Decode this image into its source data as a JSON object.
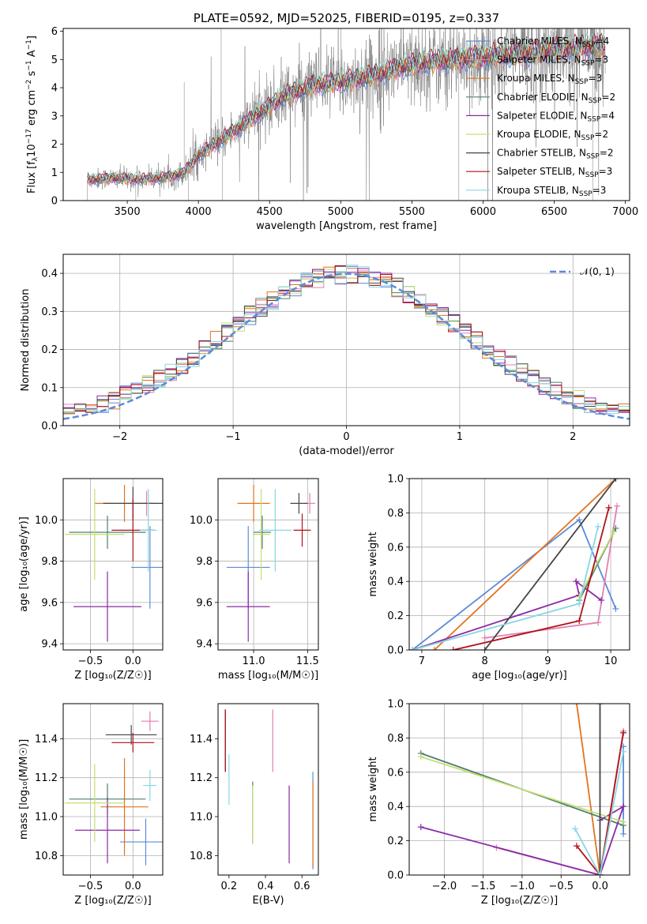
{
  "colors": {
    "Chabrier MILES": "#5b8bd9",
    "Salpeter MILES": "#e27fb1",
    "Kroupa MILES": "#e2731e",
    "Chabrier ELODIE": "#4f7f6f",
    "Salpeter ELODIE": "#8a2aa8",
    "Kroupa ELODIE": "#c2e070",
    "Chabrier STELIB": "#454545",
    "Salpeter STELIB": "#b0101a",
    "Kroupa STELIB": "#89d6e0",
    "data": "#7a7a7a",
    "gauss": "#5b8bd9"
  },
  "chart_data": [
    {
      "id": "spectrum",
      "type": "line",
      "title": "PLATE=0592, MJD=52025, FIBERID=0195, z=0.337",
      "xlabel": "wavelength [Angstrom, rest frame]",
      "ylabel_parts": [
        "Flux [f",
        "λ",
        "10",
        "−17",
        " erg cm",
        "−2",
        " s",
        "−1",
        " A",
        "−1",
        "]"
      ],
      "xlim": [
        3050,
        7030
      ],
      "ylim": [
        0,
        6.1
      ],
      "xticks": [
        3500,
        4000,
        4500,
        5000,
        5500,
        6000,
        6500,
        7000
      ],
      "yticks": [
        0,
        1,
        2,
        3,
        4,
        5,
        6
      ],
      "grid": false,
      "legend": "upper right",
      "legend_entries": [
        {
          "model": "Chabrier MILES",
          "label": "Chabrier MILES, N",
          "sub": "SSP",
          "tail": "=4"
        },
        {
          "model": "Salpeter MILES",
          "label": "Salpeter MILES, N",
          "sub": "SSP",
          "tail": "=3"
        },
        {
          "model": "Kroupa MILES",
          "label": "Kroupa MILES, N",
          "sub": "SSP",
          "tail": "=3"
        },
        {
          "model": "Chabrier ELODIE",
          "label": "Chabrier ELODIE, N",
          "sub": "SSP",
          "tail": "=2"
        },
        {
          "model": "Salpeter ELODIE",
          "label": "Salpeter ELODIE, N",
          "sub": "SSP",
          "tail": "=4"
        },
        {
          "model": "Kroupa ELODIE",
          "label": "Kroupa ELODIE, N",
          "sub": "SSP",
          "tail": "=2"
        },
        {
          "model": "Chabrier STELIB",
          "label": "Chabrier STELIB, N",
          "sub": "SSP",
          "tail": "=2"
        },
        {
          "model": "Salpeter STELIB",
          "label": "Salpeter STELIB, N",
          "sub": "SSP",
          "tail": "=3"
        },
        {
          "model": "Kroupa STELIB",
          "label": "Kroupa STELIB, N",
          "sub": "SSP",
          "tail": "=3"
        }
      ],
      "x_range": [
        3220,
        6860
      ],
      "continuum": [
        [
          3220,
          0.75
        ],
        [
          3400,
          0.8
        ],
        [
          3600,
          0.75
        ],
        [
          3800,
          0.85
        ],
        [
          3900,
          1.0
        ],
        [
          4000,
          1.6
        ],
        [
          4200,
          2.3
        ],
        [
          4400,
          3.0
        ],
        [
          4600,
          3.7
        ],
        [
          4800,
          4.1
        ],
        [
          5000,
          4.2
        ],
        [
          5200,
          4.4
        ],
        [
          5400,
          4.7
        ],
        [
          5600,
          4.9
        ],
        [
          5800,
          5.0
        ],
        [
          6000,
          5.1
        ],
        [
          6200,
          5.2
        ],
        [
          6400,
          5.3
        ],
        [
          6600,
          5.4
        ],
        [
          6860,
          5.5
        ]
      ]
    },
    {
      "id": "residuals",
      "type": "histogram",
      "xlabel": "(data-model)/error",
      "ylabel": "Normed distribution",
      "xlim": [
        -2.5,
        2.5
      ],
      "ylim": [
        0,
        0.45
      ],
      "xticks": [
        -2,
        -1,
        0,
        1,
        2
      ],
      "yticks": [
        0.0,
        0.1,
        0.2,
        0.3,
        0.4
      ],
      "grid": true,
      "legend": "upper right",
      "legend_label": "𝒩(0, 1)",
      "bin_width": 0.1,
      "bin_start": -2.5
    },
    {
      "id": "age_vs_Z",
      "type": "errorbar",
      "xlabel": "Z [log₁₀(Z/Z☉)]",
      "ylabel": "age  [log₁₀(age/yr)]",
      "xlim": [
        -0.82,
        0.35
      ],
      "ylim": [
        9.37,
        10.2
      ],
      "xticks": [
        -0.5,
        0.0
      ],
      "yticks": [
        9.4,
        9.6,
        9.8,
        10.0
      ],
      "grid": true,
      "points": [
        {
          "model": "Chabrier MILES",
          "x": 0.2,
          "xerr": 0.22,
          "y": 9.77,
          "yerr": 0.2
        },
        {
          "model": "Salpeter MILES",
          "x": 0.16,
          "xerr": 0.15,
          "y": 10.08,
          "yerr": 0.06
        },
        {
          "model": "Kroupa MILES",
          "x": -0.1,
          "xerr": 0.35,
          "y": 10.08,
          "yerr": 0.09
        },
        {
          "model": "Chabrier ELODIE",
          "x": -0.3,
          "xerr": 0.45,
          "y": 9.94,
          "yerr": 0.08
        },
        {
          "model": "Salpeter ELODIE",
          "x": -0.3,
          "xerr": 0.4,
          "y": 9.58,
          "yerr": 0.17
        },
        {
          "model": "Kroupa ELODIE",
          "x": -0.45,
          "xerr": 0.35,
          "y": 9.93,
          "yerr": 0.22
        },
        {
          "model": "Chabrier STELIB",
          "x": 0.0,
          "xerr": 0.35,
          "y": 10.08,
          "yerr": 0.08
        },
        {
          "model": "Salpeter STELIB",
          "x": 0.0,
          "xerr": 0.25,
          "y": 9.95,
          "yerr": 0.15
        },
        {
          "model": "Kroupa STELIB",
          "x": 0.18,
          "xerr": 0.1,
          "y": 9.95,
          "yerr": 0.2
        }
      ]
    },
    {
      "id": "age_vs_mass",
      "type": "errorbar",
      "xlabel": "mass [log₁₀(M/M☉)]",
      "ylabel": "",
      "xlim": [
        10.67,
        11.6
      ],
      "ylim": [
        9.37,
        10.2
      ],
      "xticks": [
        11.0,
        11.5
      ],
      "yticks": [
        9.4,
        9.6,
        9.8,
        10.0
      ],
      "grid": true,
      "points": [
        {
          "model": "Chabrier MILES",
          "x": 10.95,
          "xerr": 0.2,
          "y": 9.77,
          "yerr": 0.2
        },
        {
          "model": "Salpeter MILES",
          "x": 11.52,
          "xerr": 0.05,
          "y": 10.08,
          "yerr": 0.05
        },
        {
          "model": "Kroupa MILES",
          "x": 11.0,
          "xerr": 0.15,
          "y": 10.08,
          "yerr": 0.09
        },
        {
          "model": "Chabrier ELODIE",
          "x": 11.08,
          "xerr": 0.08,
          "y": 9.94,
          "yerr": 0.08
        },
        {
          "model": "Salpeter ELODIE",
          "x": 10.95,
          "xerr": 0.2,
          "y": 9.58,
          "yerr": 0.17
        },
        {
          "model": "Kroupa ELODIE",
          "x": 11.07,
          "xerr": 0.08,
          "y": 9.93,
          "yerr": 0.22
        },
        {
          "model": "Chabrier STELIB",
          "x": 11.42,
          "xerr": 0.08,
          "y": 10.08,
          "yerr": 0.05
        },
        {
          "model": "Salpeter STELIB",
          "x": 11.45,
          "xerr": 0.08,
          "y": 9.95,
          "yerr": 0.08
        },
        {
          "model": "Kroupa STELIB",
          "x": 11.2,
          "xerr": 0.15,
          "y": 9.95,
          "yerr": 0.2
        }
      ]
    },
    {
      "id": "weight_vs_age",
      "type": "line",
      "xlabel": "age  [log₁₀(age/yr)]",
      "ylabel": "mass weight",
      "xlim": [
        6.8,
        10.3
      ],
      "ylim": [
        0,
        1.0
      ],
      "xticks": [
        7,
        8,
        9,
        10
      ],
      "yticks": [
        0.0,
        0.2,
        0.4,
        0.6,
        0.8,
        1.0
      ],
      "grid": true,
      "series": [
        {
          "model": "Chabrier MILES",
          "points": [
            [
              6.85,
              0.0
            ],
            [
              9.5,
              0.76
            ],
            [
              10.08,
              0.24
            ]
          ]
        },
        {
          "model": "Salpeter MILES",
          "points": [
            [
              8.0,
              0.07
            ],
            [
              9.8,
              0.16
            ],
            [
              10.1,
              0.84
            ]
          ]
        },
        {
          "model": "Kroupa MILES",
          "points": [
            [
              7.2,
              0.0
            ],
            [
              10.08,
              1.0
            ]
          ]
        },
        {
          "model": "Chabrier ELODIE",
          "points": [
            [
              9.5,
              0.29
            ],
            [
              10.08,
              0.71
            ]
          ]
        },
        {
          "model": "Salpeter ELODIE",
          "points": [
            [
              6.85,
              0.0
            ],
            [
              9.5,
              0.32
            ],
            [
              9.45,
              0.4
            ],
            [
              9.85,
              0.29
            ]
          ]
        },
        {
          "model": "Kroupa ELODIE",
          "points": [
            [
              9.5,
              0.31
            ],
            [
              10.05,
              0.69
            ]
          ]
        },
        {
          "model": "Chabrier STELIB",
          "points": [
            [
              8.0,
              0.0
            ],
            [
              10.08,
              1.0
            ]
          ]
        },
        {
          "model": "Salpeter STELIB",
          "points": [
            [
              7.5,
              0.0
            ],
            [
              9.5,
              0.17
            ],
            [
              9.97,
              0.83
            ]
          ]
        },
        {
          "model": "Kroupa STELIB",
          "points": [
            [
              6.85,
              0.0
            ],
            [
              9.5,
              0.27
            ],
            [
              9.8,
              0.72
            ]
          ]
        }
      ]
    },
    {
      "id": "mass_vs_Z",
      "type": "errorbar",
      "xlabel": "Z [log₁₀(Z/Z☉)]",
      "ylabel": "mass [log₁₀(M/M☉)]",
      "xlim": [
        -0.82,
        0.35
      ],
      "ylim": [
        10.7,
        11.58
      ],
      "xticks": [
        -0.5,
        0.0
      ],
      "yticks": [
        10.8,
        11.0,
        11.2,
        11.4
      ],
      "grid": true,
      "points": [
        {
          "model": "Chabrier MILES",
          "x": 0.15,
          "xerr": 0.3,
          "y": 10.87,
          "yerr": 0.12
        },
        {
          "model": "Salpeter MILES",
          "x": 0.2,
          "xerr": 0.1,
          "y": 11.49,
          "yerr": 0.05
        },
        {
          "model": "Kroupa MILES",
          "x": -0.1,
          "xerr": 0.28,
          "y": 11.05,
          "yerr": 0.25
        },
        {
          "model": "Chabrier ELODIE",
          "x": -0.3,
          "xerr": 0.45,
          "y": 11.09,
          "yerr": 0.08
        },
        {
          "model": "Salpeter ELODIE",
          "x": -0.3,
          "xerr": 0.38,
          "y": 10.93,
          "yerr": 0.17
        },
        {
          "model": "Kroupa ELODIE",
          "x": -0.45,
          "xerr": 0.35,
          "y": 11.07,
          "yerr": 0.2
        },
        {
          "model": "Chabrier STELIB",
          "x": -0.02,
          "xerr": 0.3,
          "y": 11.42,
          "yerr": 0.05
        },
        {
          "model": "Salpeter STELIB",
          "x": 0.0,
          "xerr": 0.25,
          "y": 11.38,
          "yerr": 0.05
        },
        {
          "model": "Kroupa STELIB",
          "x": 0.2,
          "xerr": 0.08,
          "y": 11.16,
          "yerr": 0.08
        }
      ]
    },
    {
      "id": "mass_vs_ebv",
      "type": "errorbar",
      "xlabel": "E(B-V)",
      "ylabel": "",
      "xlim": [
        0.14,
        0.69
      ],
      "ylim": [
        10.7,
        11.58
      ],
      "xticks": [
        0.2,
        0.4,
        0.6
      ],
      "yticks": [
        10.8,
        11.0,
        11.2,
        11.4
      ],
      "grid": false,
      "points": [
        {
          "model": "Chabrier MILES",
          "x": 0.66,
          "xerr": 0,
          "y": 10.98,
          "yerr": 0.25
        },
        {
          "model": "Salpeter MILES",
          "x": 0.44,
          "xerr": 0,
          "y": 11.39,
          "yerr": 0.16
        },
        {
          "model": "Kroupa MILES",
          "x": 0.66,
          "xerr": 0,
          "y": 10.96,
          "yerr": 0.22
        },
        {
          "model": "Chabrier ELODIE",
          "x": 0.33,
          "xerr": 0,
          "y": 11.02,
          "yerr": 0.16
        },
        {
          "model": "Salpeter ELODIE",
          "x": 0.53,
          "xerr": 0,
          "y": 10.96,
          "yerr": 0.2
        },
        {
          "model": "Kroupa ELODIE",
          "x": 0.33,
          "xerr": 0,
          "y": 11.01,
          "yerr": 0.15
        },
        {
          "model": "Chabrier STELIB",
          "x": 0.18,
          "xerr": 0,
          "y": 11.39,
          "yerr": 0.16
        },
        {
          "model": "Salpeter STELIB",
          "x": 0.18,
          "xerr": 0,
          "y": 11.39,
          "yerr": 0.16
        },
        {
          "model": "Kroupa STELIB",
          "x": 0.2,
          "xerr": 0,
          "y": 11.19,
          "yerr": 0.13
        }
      ]
    },
    {
      "id": "weight_vs_Z",
      "type": "line",
      "xlabel": "Z [log₁₀(Z/Z☉)]",
      "ylabel": "mass weight",
      "xlim": [
        -2.45,
        0.38
      ],
      "ylim": [
        0,
        1.0
      ],
      "xticks": [
        -2.0,
        -1.5,
        -1.0,
        -0.5,
        0.0
      ],
      "yticks": [
        0.0,
        0.2,
        0.4,
        0.6,
        0.8,
        1.0
      ],
      "grid": true,
      "series": [
        {
          "model": "Chabrier MILES",
          "points": [
            [
              0.3,
              0.24
            ],
            [
              0.3,
              0.75
            ]
          ]
        },
        {
          "model": "Salpeter MILES",
          "points": [
            [
              -1.33,
              0.16
            ],
            [
              0.0,
              0.0
            ],
            [
              0.3,
              0.84
            ]
          ]
        },
        {
          "model": "Kroupa MILES",
          "points": [
            [
              -0.3,
              1.0
            ],
            [
              0.0,
              0.0
            ]
          ]
        },
        {
          "model": "Chabrier ELODIE",
          "points": [
            [
              -2.3,
              0.71
            ],
            [
              0.3,
              0.29
            ]
          ]
        },
        {
          "model": "Salpeter ELODIE",
          "points": [
            [
              -2.3,
              0.28
            ],
            [
              0.0,
              0.0
            ],
            [
              0.3,
              0.4
            ],
            [
              0.0,
              0.32
            ]
          ]
        },
        {
          "model": "Kroupa ELODIE",
          "points": [
            [
              -2.3,
              0.69
            ],
            [
              0.3,
              0.31
            ]
          ]
        },
        {
          "model": "Chabrier STELIB",
          "points": [
            [
              0.0,
              0.0
            ],
            [
              0.0,
              1.0
            ]
          ]
        },
        {
          "model": "Salpeter STELIB",
          "points": [
            [
              -0.3,
              0.17
            ],
            [
              0.0,
              0.0
            ],
            [
              0.3,
              0.83
            ]
          ]
        },
        {
          "model": "Kroupa STELIB",
          "points": [
            [
              -0.32,
              0.27
            ],
            [
              0.0,
              0.0
            ],
            [
              0.3,
              0.72
            ]
          ]
        }
      ]
    }
  ]
}
